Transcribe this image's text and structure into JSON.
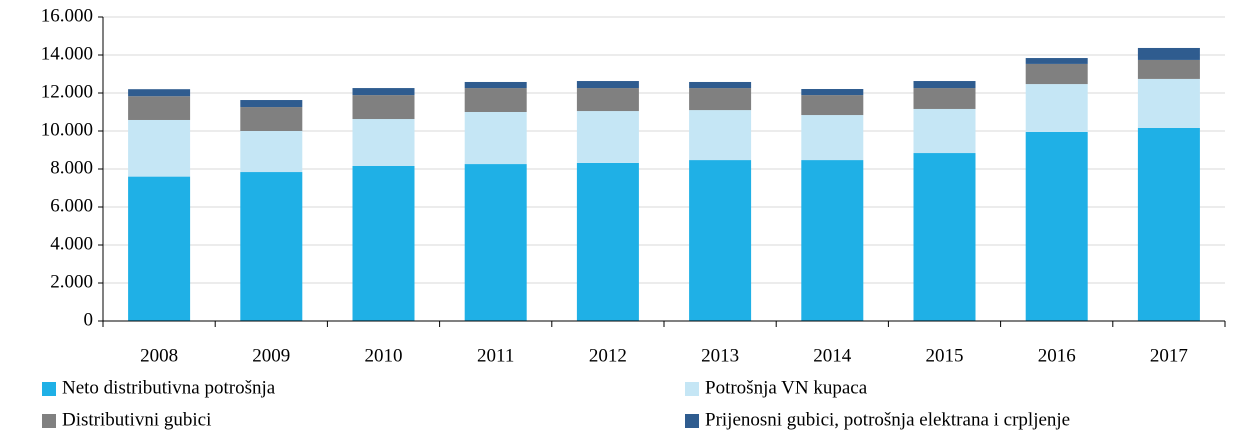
{
  "chart_data": {
    "type": "stacked_bar",
    "categories": [
      "2008",
      "2009",
      "2010",
      "2011",
      "2012",
      "2013",
      "2014",
      "2015",
      "2016",
      "2017"
    ],
    "series": [
      {
        "name": "Neto distributivna potrošnja",
        "color": "#1fb0e6",
        "values": [
          7600,
          7840,
          8160,
          8260,
          8320,
          8470,
          8470,
          8840,
          9950,
          10160
        ]
      },
      {
        "name": "Potrošnja VN kupaca",
        "color": "#c5e6f5",
        "values": [
          2980,
          2160,
          2470,
          2740,
          2730,
          2630,
          2370,
          2320,
          2520,
          2580
        ]
      },
      {
        "name": "Distributivni gubici",
        "color": "#808080",
        "values": [
          1250,
          1260,
          1260,
          1260,
          1210,
          1160,
          1050,
          1100,
          1060,
          1000
        ]
      },
      {
        "name": "Prijenosni gubici, potrošnja elektrana i crpljenje",
        "color": "#2f5c8f",
        "values": [
          370,
          370,
          370,
          320,
          370,
          320,
          320,
          370,
          310,
          630
        ]
      }
    ],
    "ylim": [
      0,
      16000
    ],
    "yticks": [
      0,
      {
        "value": 2000,
        "label": "2.000"
      },
      {
        "value": 4000,
        "label": "4.000"
      },
      {
        "value": 6000,
        "label": "6.000"
      },
      {
        "value": 8000,
        "label": "8.000"
      },
      {
        "value": 10000,
        "label": "10.000"
      },
      {
        "value": 12000,
        "label": "12.000"
      },
      {
        "value": 14000,
        "label": "14.000"
      },
      {
        "value": 16000,
        "label": "16.000"
      }
    ],
    "grid": true
  }
}
